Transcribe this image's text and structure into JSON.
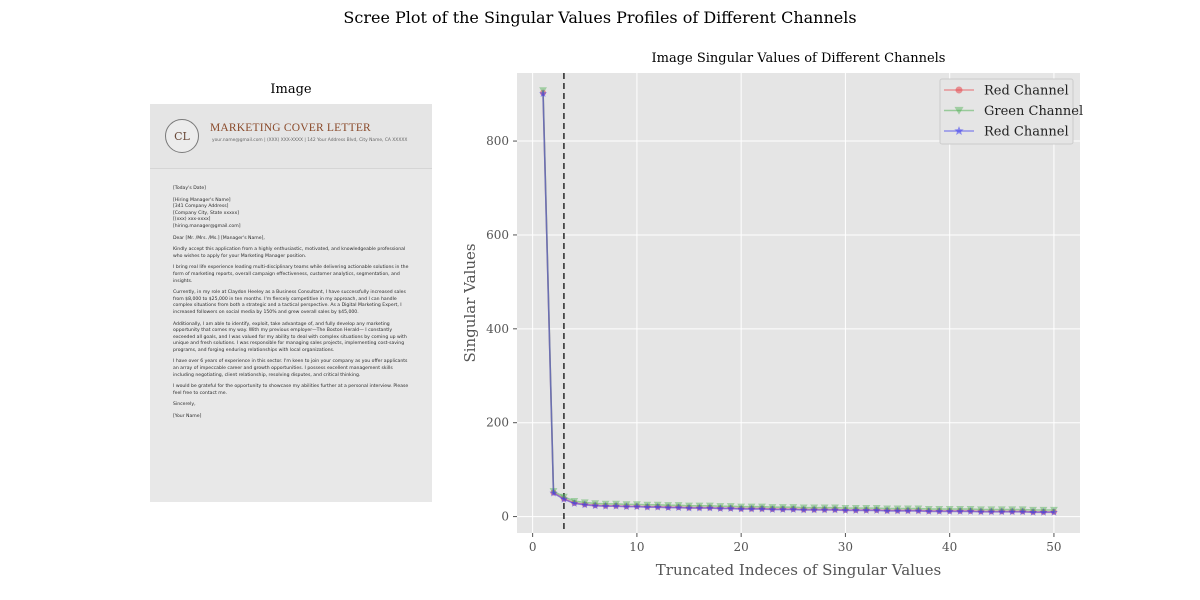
{
  "suptitle": "Scree Plot of the Singular Values Profiles of Different Channels",
  "image_panel": {
    "title": "Image",
    "document": {
      "monogram": "CL",
      "heading": "MARKETING COVER LETTER",
      "contact": "your.name@gmail.com  |  (XXX) XXX-XXXX  |  142 Your Address Blvd, City Name, CA XXXXX",
      "paragraphs": [
        "[Today's Date]",
        "[Hiring Manager's Name]\n[341 Company Address]\n[Company City, State xxxxx]\n[(xxx) xxx-xxxx]\n[hiring.manager@gmail.com]",
        "Dear [Mr. /Mrs. /Ms.] [Manager's Name],",
        "Kindly accept this application from a highly enthusiastic, motivated, and knowledgeable professional who wishes to apply for your Marketing Manager position.",
        "I bring real life experience leading multi-disciplinary teams while delivering actionable solutions in the form of marketing reports, overall campaign effectiveness, customer analytics, segmentation, and insights.",
        "Currently, in my role at Claydon Heeley as a Business Consultant, I have successfully increased sales from $8,000 to $25,000 in ten months. I'm fiercely competitive in my approach, and I can handle complex situations from both a strategic and a tactical perspective. As a Digital Marketing Expert, I increased followers on social media by 150% and grew overall sales by $45,000.",
        "Additionally, I am able to identify, exploit, take advantage of, and fully develop any marketing opportunity that comes my way. With my previous employer—The Boston Herald— I constantly exceeded all goals, and I was valued for my ability to deal with complex situations by coming up with unique and fresh solutions. I was responsible for managing sales projects, implementing cost-saving programs, and forging enduring relationships with local organizations.",
        "I have over 6 years of experience in this sector. I'm keen to join your company as you offer applicants an array of impeccable career and growth opportunities. I possess excellent management skills including negotiating, client relationship, resolving disputes, and critical thinking.",
        "I would be grateful for the opportunity to showcase my abilities further at a personal interview. Please feel free to contact me.",
        "Sincerely,",
        "[Your Name]"
      ]
    }
  },
  "chart_data": {
    "type": "line",
    "title": "Image Singular Values of Different Channels",
    "xlabel": "Truncated Indeces of Singular Values",
    "ylabel": "Singular Values",
    "xlim": [
      -1.5,
      52.5
    ],
    "ylim": [
      -35,
      945
    ],
    "xticks": [
      0,
      10,
      20,
      30,
      40,
      50
    ],
    "yticks": [
      0,
      200,
      400,
      600,
      800
    ],
    "grid": true,
    "legend_position": "top-right",
    "vline_x": 3,
    "x": [
      1,
      2,
      3,
      4,
      5,
      6,
      7,
      8,
      9,
      10,
      11,
      12,
      13,
      14,
      15,
      16,
      17,
      18,
      19,
      20,
      21,
      22,
      23,
      24,
      25,
      26,
      27,
      28,
      29,
      30,
      31,
      32,
      33,
      34,
      35,
      36,
      37,
      38,
      39,
      40,
      41,
      42,
      43,
      44,
      45,
      46,
      47,
      48,
      49,
      50
    ],
    "series": [
      {
        "name": "Red Channel",
        "color": "#e8454a",
        "marker": "circle",
        "values": [
          903,
          51,
          38,
          29,
          26,
          24,
          23,
          23,
          22,
          22,
          21,
          21,
          20,
          20,
          19,
          19,
          19,
          18,
          18,
          17,
          17,
          17,
          16,
          16,
          16,
          15,
          15,
          15,
          15,
          14,
          14,
          14,
          14,
          13,
          13,
          13,
          13,
          12,
          12,
          12,
          12,
          12,
          11,
          11,
          11,
          11,
          11,
          10,
          10,
          10
        ]
      },
      {
        "name": "Green Channel",
        "color": "#4caf50",
        "marker": "triangle-down",
        "values": [
          908,
          54,
          42,
          33,
          30,
          28,
          27,
          27,
          26,
          26,
          25,
          25,
          24,
          24,
          23,
          23,
          23,
          22,
          22,
          21,
          21,
          21,
          20,
          20,
          20,
          19,
          19,
          19,
          19,
          18,
          18,
          18,
          18,
          17,
          17,
          17,
          17,
          16,
          16,
          16,
          16,
          16,
          15,
          15,
          15,
          15,
          15,
          14,
          14,
          14
        ]
      },
      {
        "name": "Red Channel",
        "color": "#3b3bf0",
        "marker": "star",
        "values": [
          901,
          50,
          37,
          28,
          25,
          23,
          22,
          22,
          21,
          21,
          20,
          20,
          19,
          19,
          18,
          18,
          18,
          17,
          17,
          16,
          16,
          16,
          15,
          15,
          15,
          14,
          14,
          14,
          14,
          13,
          13,
          13,
          13,
          12,
          12,
          12,
          12,
          11,
          11,
          11,
          11,
          11,
          10,
          10,
          10,
          10,
          10,
          9,
          9,
          9
        ]
      }
    ]
  }
}
